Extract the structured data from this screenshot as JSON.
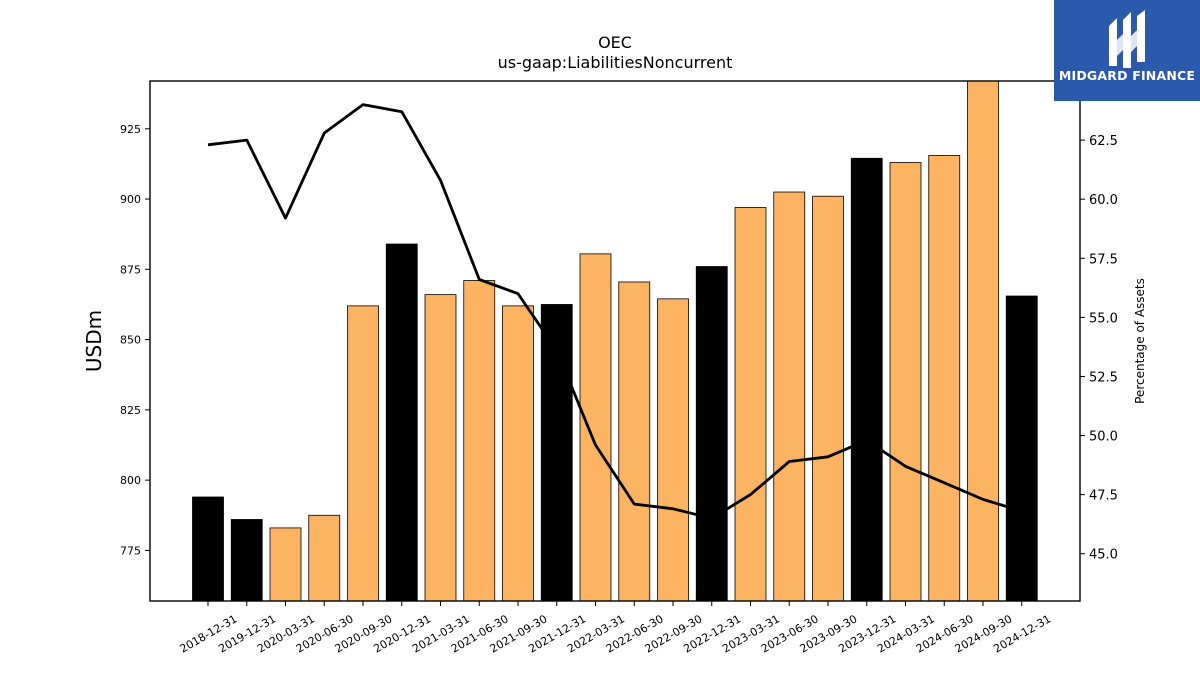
{
  "chart_data": {
    "type": "bar",
    "title": "OEC",
    "subtitle": "us-gaap:LiabilitiesNoncurrent",
    "ylabel": "USDm",
    "y2label": "Percentage of Assets",
    "ylim": [
      757,
      942
    ],
    "y2lim": [
      43.0,
      65.0
    ],
    "yticks": [
      775,
      800,
      825,
      850,
      875,
      900,
      925
    ],
    "y2ticks": [
      "45.0",
      "47.5",
      "50.0",
      "52.5",
      "55.0",
      "57.5",
      "60.0",
      "62.5"
    ],
    "categories": [
      "2018-12-31",
      "2019-12-31",
      "2020-03-31",
      "2020-06-30",
      "2020-09-30",
      "2020-12-31",
      "2021-03-31",
      "2021-06-30",
      "2021-09-30",
      "2021-12-31",
      "2022-03-31",
      "2022-06-30",
      "2022-09-30",
      "2022-12-31",
      "2023-03-31",
      "2023-06-30",
      "2023-09-30",
      "2023-12-31",
      "2024-03-31",
      "2024-06-30",
      "2024-09-30",
      "2024-12-31"
    ],
    "series": [
      {
        "type": "bar",
        "values": [
          794,
          786,
          783,
          787.5,
          862,
          884,
          866,
          871,
          862,
          862.5,
          880.5,
          870.5,
          864.5,
          876,
          897,
          902.5,
          901,
          914.5,
          913,
          915.5,
          942,
          865.5
        ],
        "annual": [
          true,
          true,
          false,
          false,
          false,
          true,
          false,
          false,
          false,
          true,
          false,
          false,
          false,
          true,
          false,
          false,
          false,
          true,
          false,
          false,
          false,
          true
        ]
      },
      {
        "type": "line",
        "axis": "right",
        "values": [
          62.3,
          62.5,
          59.2,
          62.8,
          64.0,
          63.7,
          60.8,
          56.6,
          56.0,
          53.6,
          49.6,
          47.1,
          46.9,
          46.5,
          47.5,
          48.9,
          49.1,
          49.8,
          48.7,
          48.0,
          47.3,
          46.8
        ]
      }
    ],
    "colors": {
      "annual": "#000000",
      "quarter": "#fdb462",
      "line": "#000000"
    },
    "grid": false,
    "legend": "none"
  },
  "logo": {
    "text": "MIDGARD FINANCE",
    "icon": "midgard-logo-icon"
  }
}
